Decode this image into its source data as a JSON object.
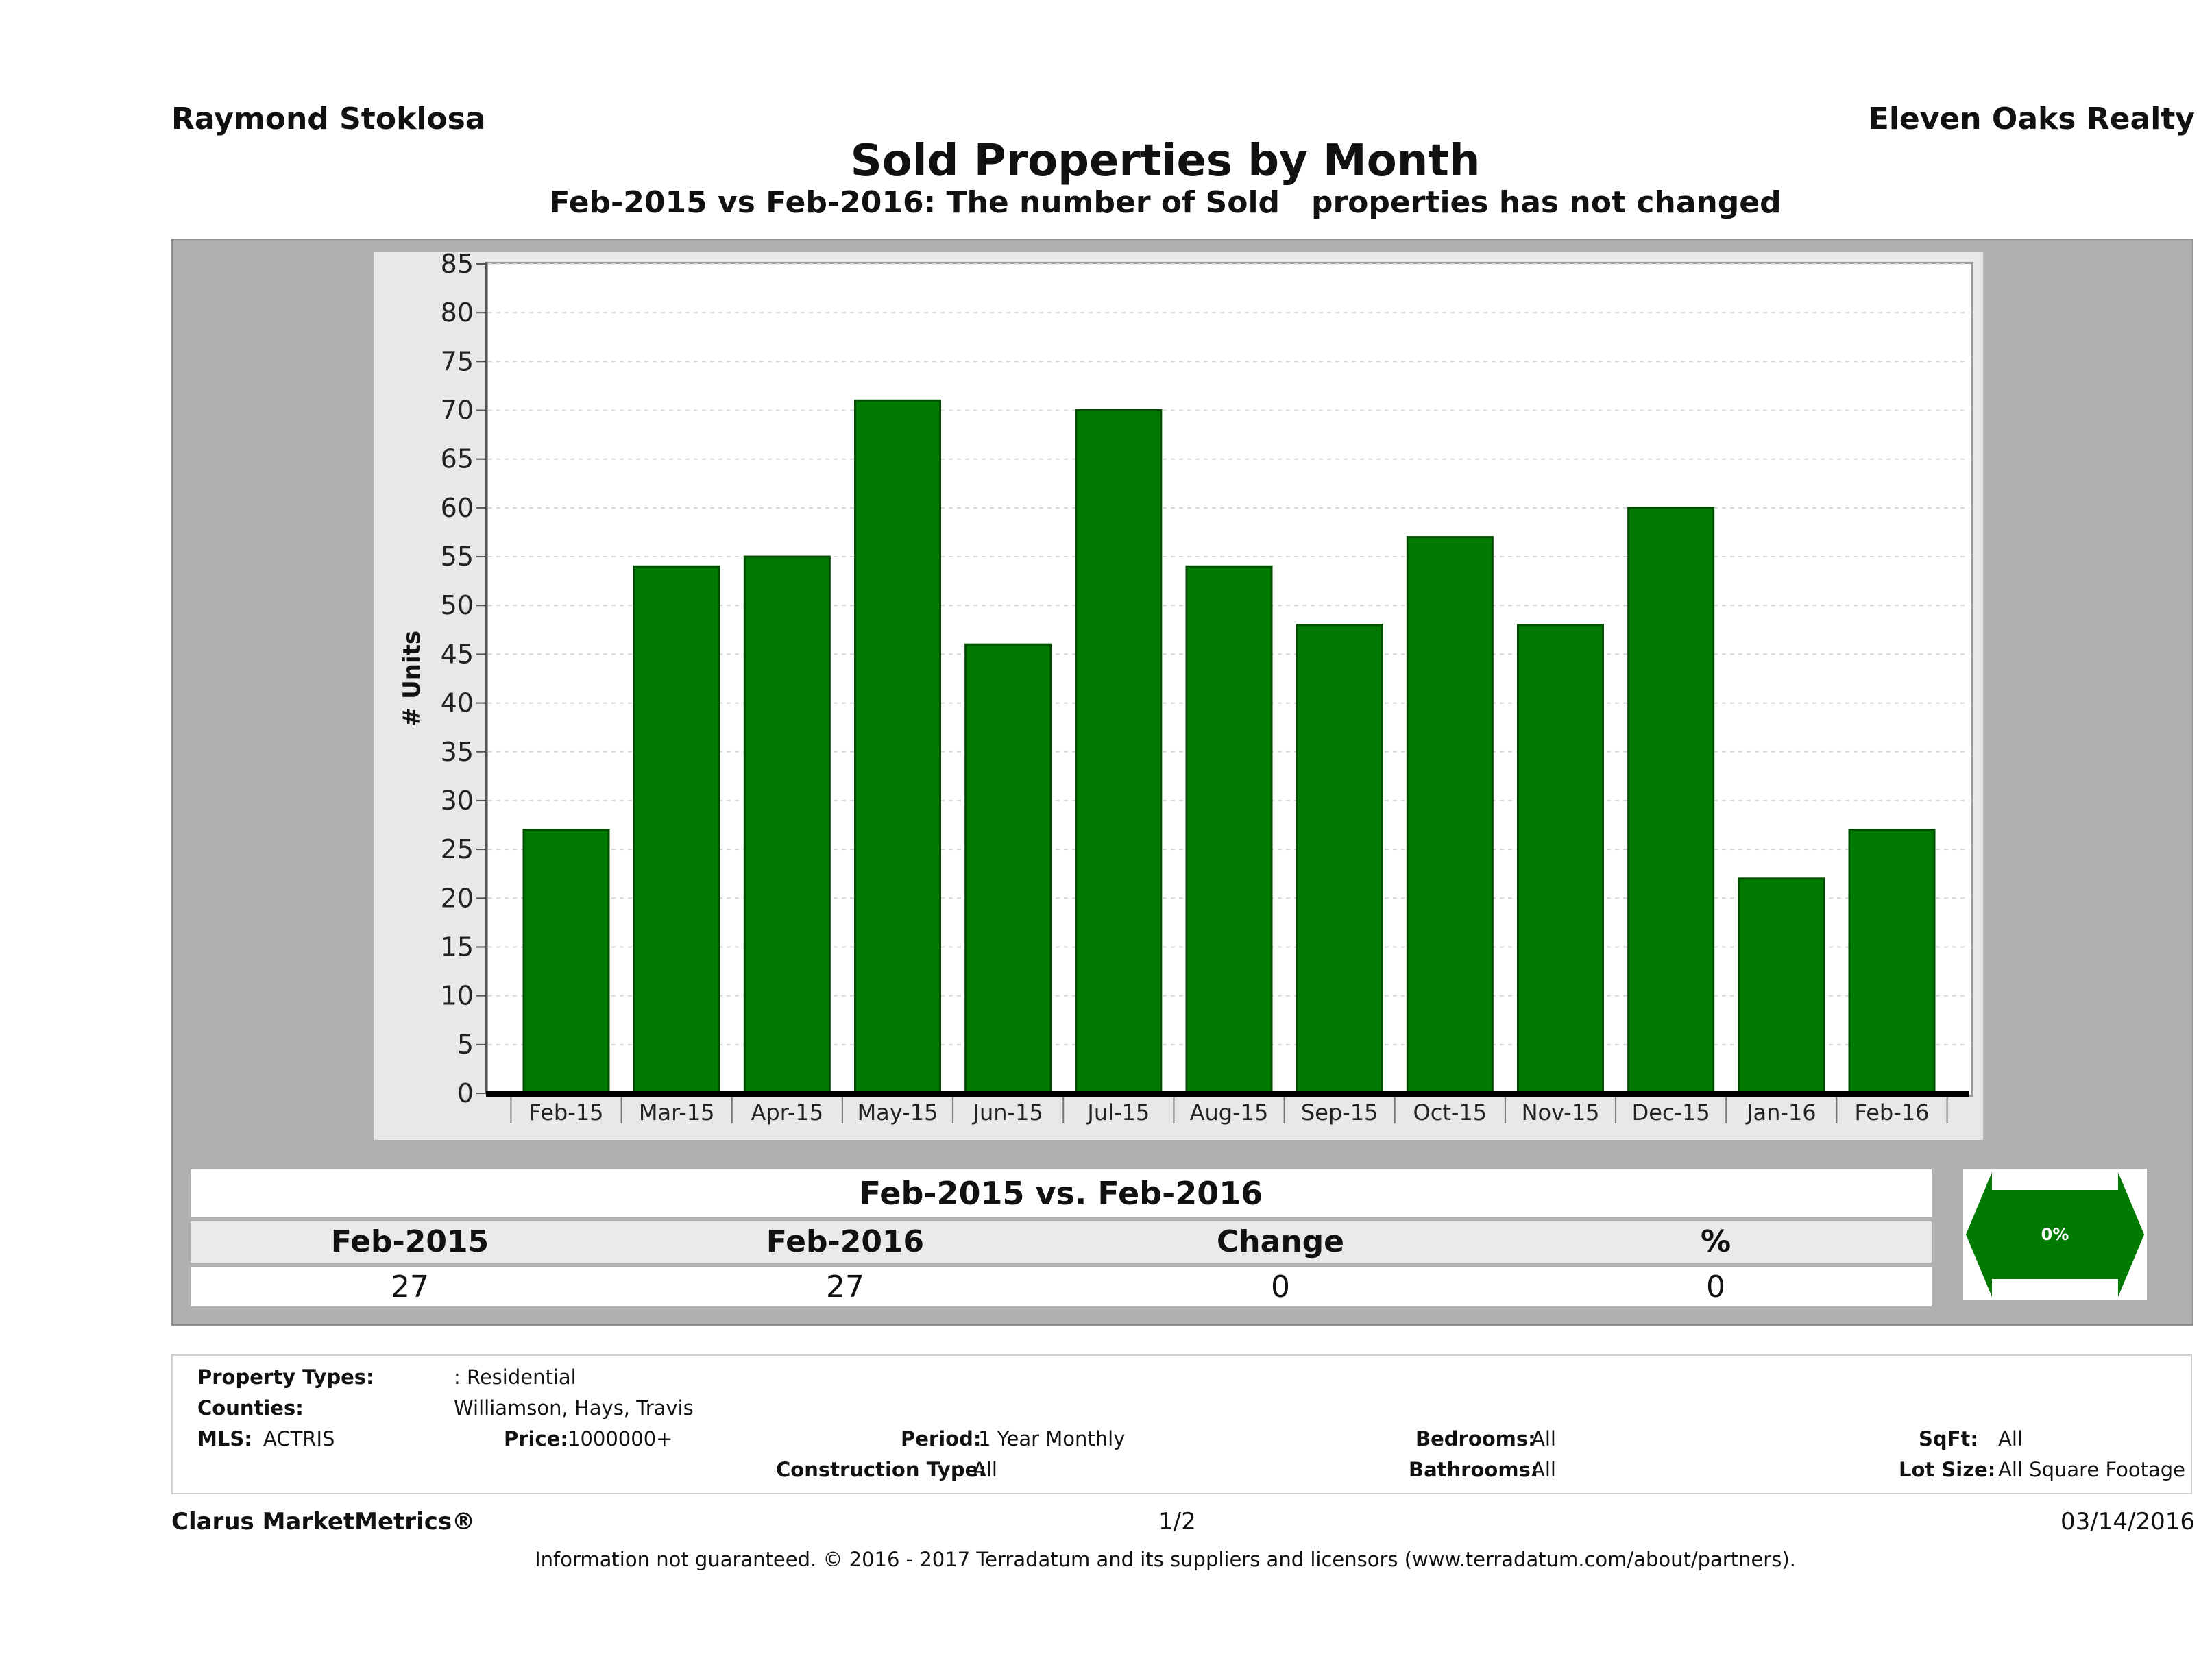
{
  "header": {
    "agent": "Raymond Stoklosa",
    "broker": "Eleven Oaks Realty",
    "title": "Sold Properties by Month",
    "subtitle": "Feb-2015 vs Feb-2016: The number of Sold   properties has not changed"
  },
  "chart_data": {
    "type": "bar",
    "title": "Sold Properties by Month",
    "xlabel": "",
    "ylabel": "# Units",
    "ylim": [
      0,
      85
    ],
    "yticks": [
      0,
      5,
      10,
      15,
      20,
      25,
      30,
      35,
      40,
      45,
      50,
      55,
      60,
      65,
      70,
      75,
      80,
      85
    ],
    "grid": true,
    "categories": [
      "Feb-15",
      "Mar-15",
      "Apr-15",
      "May-15",
      "Jun-15",
      "Jul-15",
      "Aug-15",
      "Sep-15",
      "Oct-15",
      "Nov-15",
      "Dec-15",
      "Jan-16",
      "Feb-16"
    ],
    "values": [
      27,
      54,
      55,
      71,
      46,
      70,
      54,
      48,
      57,
      48,
      60,
      22,
      27
    ],
    "bar_color": "#007a00"
  },
  "comparison": {
    "header": "Feb-2015 vs. Feb-2016",
    "labels": [
      "Feb-2015",
      "Feb-2016",
      "Change",
      "%"
    ],
    "values": [
      "27",
      "27",
      "0",
      "0"
    ],
    "arrow_label": "0%",
    "arrow_color": "#007a00"
  },
  "filters": {
    "property_types_label": "Property Types:",
    "property_types_value": ": Residential",
    "counties_label": "Counties:",
    "counties_value": "Williamson, Hays, Travis",
    "mls_label": "MLS:",
    "mls_value": "ACTRIS",
    "price_label": "Price:",
    "price_value": "1000000+",
    "period_label": "Period:",
    "period_value": "1 Year Monthly",
    "construction_label": "Construction Type:",
    "construction_value": "All",
    "bedrooms_label": "Bedrooms:",
    "bedrooms_value": "All",
    "bathrooms_label": "Bathrooms:",
    "bathrooms_value": "All",
    "sqft_label": "SqFt:",
    "sqft_value": "All",
    "lotsize_label": "Lot Size:",
    "lotsize_value": "All Square Footage"
  },
  "footer": {
    "brand": "Clarus MarketMetrics®",
    "page": "1/2",
    "date": "03/14/2016",
    "disclaimer": "Information not guaranteed. © 2016 - 2017 Terradatum and its suppliers and licensors (www.terradatum.com/about/partners)."
  }
}
